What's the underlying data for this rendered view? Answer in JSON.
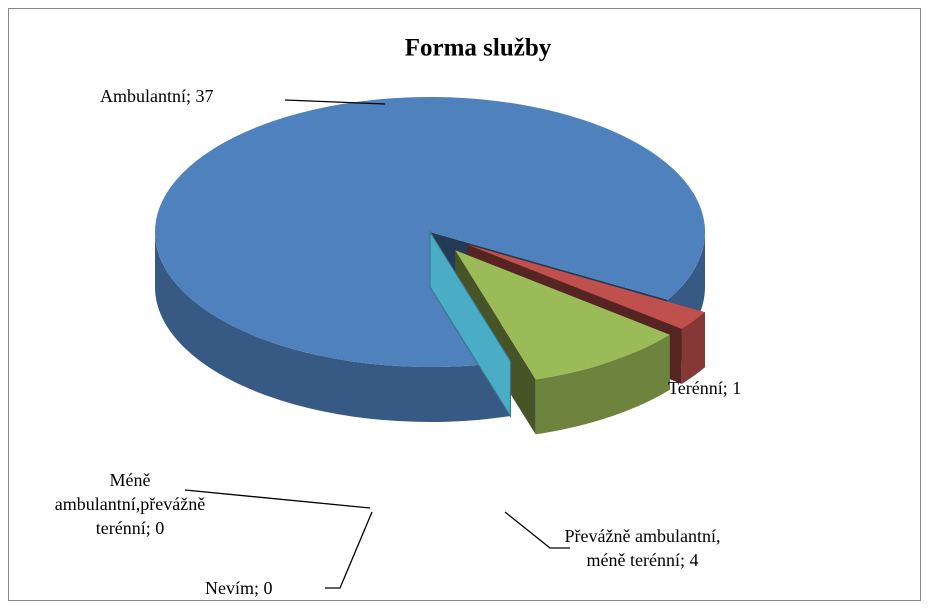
{
  "chart_data": {
    "type": "pie3d",
    "title": "Forma služby",
    "categories": [
      "Ambulantní",
      "Terénní",
      "Převážně ambulantní, méně terénní",
      "Méně ambulantní,převážně terénní",
      "Nevím"
    ],
    "values": [
      37,
      1,
      4,
      0,
      0
    ],
    "label_separator": "; ",
    "colors": [
      "#4f81bd",
      "#c0504d",
      "#9bbb59",
      "#8064a2",
      "#4bacc6"
    ],
    "exploded": [
      false,
      true,
      true,
      false,
      false
    ]
  }
}
